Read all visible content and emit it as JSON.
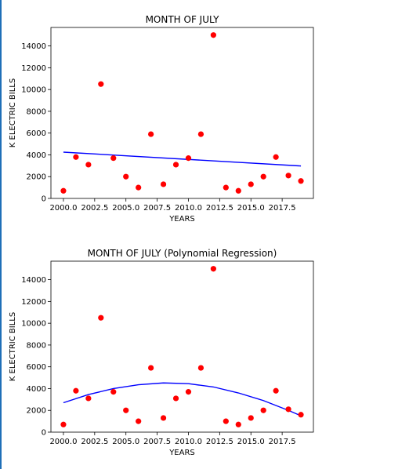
{
  "chart_data": [
    {
      "type": "scatter",
      "title": "MONTH OF JULY",
      "xlabel": "YEARS",
      "ylabel": "K ELECTRIC BILLS",
      "xlim": [
        1999.0,
        2020.0
      ],
      "ylim": [
        0,
        15700
      ],
      "xticks": [
        2000.0,
        2002.5,
        2005.0,
        2007.5,
        2010.0,
        2012.5,
        2015.0,
        2017.5
      ],
      "yticks": [
        0,
        2000,
        4000,
        6000,
        8000,
        10000,
        12000,
        14000
      ],
      "x": [
        2000,
        2001,
        2002,
        2003,
        2004,
        2005,
        2006,
        2007,
        2008,
        2009,
        2010,
        2011,
        2012,
        2013,
        2014,
        2015,
        2016,
        2017,
        2018,
        2019
      ],
      "y": [
        700,
        3800,
        3100,
        10500,
        3700,
        2000,
        1000,
        5900,
        1300,
        3100,
        3700,
        5900,
        15000,
        1000,
        700,
        1300,
        2000,
        3800,
        2100,
        1600
      ],
      "marker_color": "#ff0000",
      "fit": {
        "type": "linear",
        "x": [
          2000,
          2019
        ],
        "y": [
          4250,
          2980
        ],
        "color": "#0000ff"
      }
    },
    {
      "type": "scatter",
      "title": "MONTH OF JULY (Polynomial Regression)",
      "xlabel": "YEARS",
      "ylabel": "K ELECTRIC BILLS",
      "xlim": [
        1999.0,
        2020.0
      ],
      "ylim": [
        0,
        15700
      ],
      "xticks": [
        2000.0,
        2002.5,
        2005.0,
        2007.5,
        2010.0,
        2012.5,
        2015.0,
        2017.5
      ],
      "yticks": [
        0,
        2000,
        4000,
        6000,
        8000,
        10000,
        12000,
        14000
      ],
      "x": [
        2000,
        2001,
        2002,
        2003,
        2004,
        2005,
        2006,
        2007,
        2008,
        2009,
        2010,
        2011,
        2012,
        2013,
        2014,
        2015,
        2016,
        2017,
        2018,
        2019
      ],
      "y": [
        700,
        3800,
        3100,
        10500,
        3700,
        2000,
        1000,
        5900,
        1300,
        3100,
        3700,
        5900,
        15000,
        1000,
        700,
        1300,
        2000,
        3800,
        2100,
        1600
      ],
      "marker_color": "#ff0000",
      "fit": {
        "type": "polynomial",
        "x": [
          2000,
          2002,
          2004,
          2006,
          2008,
          2010,
          2012,
          2014,
          2016,
          2018,
          2019
        ],
        "y": [
          2700,
          3450,
          4000,
          4350,
          4520,
          4450,
          4150,
          3600,
          2900,
          2000,
          1500
        ],
        "color": "#0000ff"
      }
    }
  ]
}
